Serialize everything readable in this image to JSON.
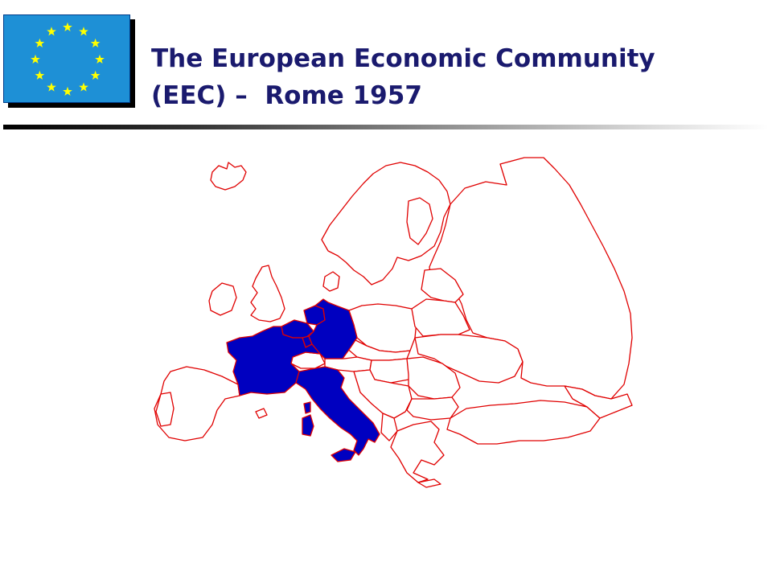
{
  "slide": {
    "title_line1": "The European Economic Community",
    "title_line2": "(EEC) –  Rome 1957"
  },
  "flag": {
    "icon": "eu-flag-icon",
    "field_color": "#1e90d6",
    "star_color": "#ffff00",
    "star_count": 12
  },
  "map": {
    "border_color": "#e00000",
    "member_fill_color": "#0000c0",
    "highlighted_regions": [
      "France",
      "Germany",
      "Italy",
      "Belgium",
      "Netherlands",
      "Luxembourg"
    ]
  }
}
